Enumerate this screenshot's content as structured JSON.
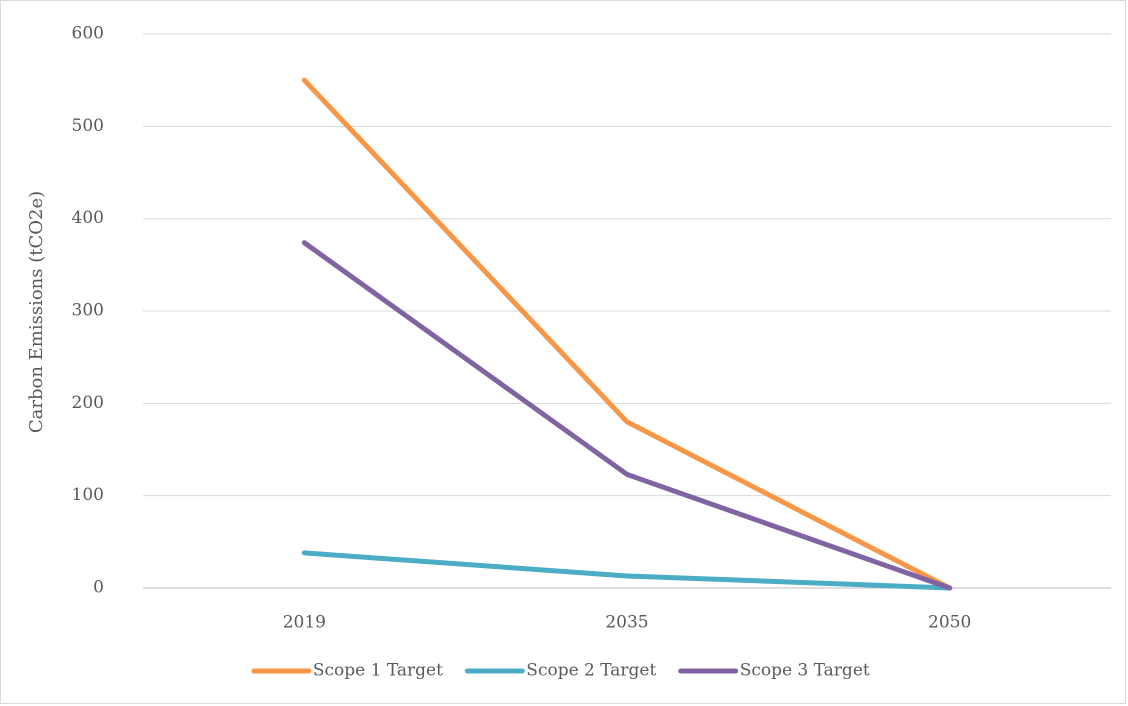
{
  "chart_data": {
    "type": "line",
    "title": "",
    "xlabel": "",
    "ylabel": "Carbon Emissions (tCO2e)",
    "categories": [
      "2019",
      "2035",
      "2050"
    ],
    "y_ticks": [
      "0",
      "100",
      "200",
      "300",
      "400",
      "500",
      "600"
    ],
    "ylim": [
      0,
      600
    ],
    "grid": true,
    "legend_position": "bottom",
    "series": [
      {
        "name": "Scope 1 Target",
        "values": [
          550,
          180,
          0
        ],
        "color": "#f79646"
      },
      {
        "name": "Scope 2 Target",
        "values": [
          38,
          13,
          0
        ],
        "color": "#4bacc6"
      },
      {
        "name": "Scope 3 Target",
        "values": [
          374,
          123,
          0
        ],
        "color": "#8064a2"
      }
    ]
  }
}
